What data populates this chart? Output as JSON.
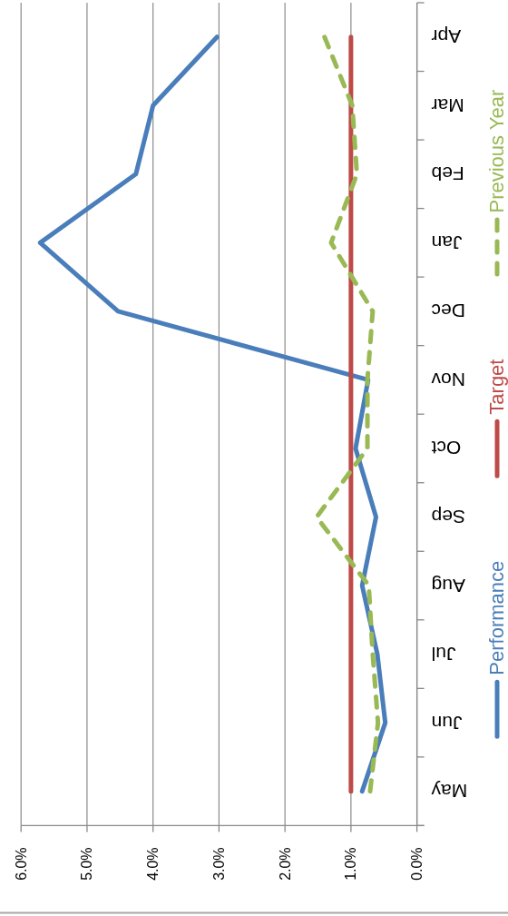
{
  "chart_data": {
    "type": "line",
    "orientation": "horizontal",
    "categories": [
      "Apr",
      "Mar",
      "Feb",
      "Jan",
      "Dec",
      "Nov",
      "Oct",
      "Sep",
      "Aug",
      "Jul",
      "Jun",
      "May"
    ],
    "series": [
      {
        "name": "Performance",
        "color": "#4a7ebb",
        "values": [
          3.03,
          4.0,
          4.26,
          5.71,
          4.53,
          0.74,
          0.93,
          0.62,
          0.83,
          0.6,
          0.48,
          0.83
        ]
      },
      {
        "name": "Target",
        "color": "#be4b48",
        "values": [
          1,
          1,
          1,
          1,
          1,
          1,
          1,
          1,
          1,
          1,
          1,
          1
        ]
      },
      {
        "name": "Previous Year",
        "color": "#98b954",
        "line_style": "dashed",
        "values": [
          1.4,
          0.98,
          0.91,
          1.3,
          0.67,
          0.75,
          0.75,
          1.52,
          0.73,
          0.67,
          0.59,
          0.71
        ]
      }
    ],
    "xlim": [
      6,
      0
    ],
    "xticks": [
      {
        "value": 0,
        "label": "0.0%"
      },
      {
        "value": 1,
        "label": "1.0%"
      },
      {
        "value": 2,
        "label": "2.0%"
      },
      {
        "value": 3,
        "label": "3.0%"
      },
      {
        "value": 4,
        "label": "4.0%"
      },
      {
        "value": 5,
        "label": "5.0%"
      },
      {
        "value": 6,
        "label": "6.0%"
      }
    ],
    "grid": "x",
    "legend": "right"
  }
}
